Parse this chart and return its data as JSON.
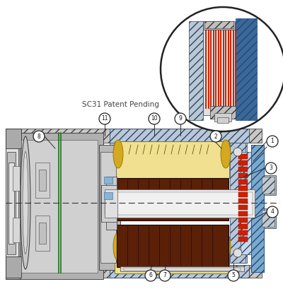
{
  "title": "SC31 Patent Pending",
  "bg_color": "#ffffff",
  "hatch_gray": "#c8c8c8",
  "hatch_blue": "#b8c8d8",
  "hatch_blue_dark": "#4a6a9a",
  "steel_light": "#e0e0e0",
  "steel_mid": "#c0c0c0",
  "steel_dark": "#909090",
  "blue_light": "#8ab4d4",
  "blue_mid": "#5a8ab4",
  "blue_dark": "#3a6a94",
  "yellow_light": "#f0e090",
  "yellow_mid": "#d4a820",
  "brown_dark": "#5a2008",
  "red_coil": "#cc2000",
  "green_line": "#207020",
  "label_bg": "#ffffff",
  "label_ec": "#333333"
}
